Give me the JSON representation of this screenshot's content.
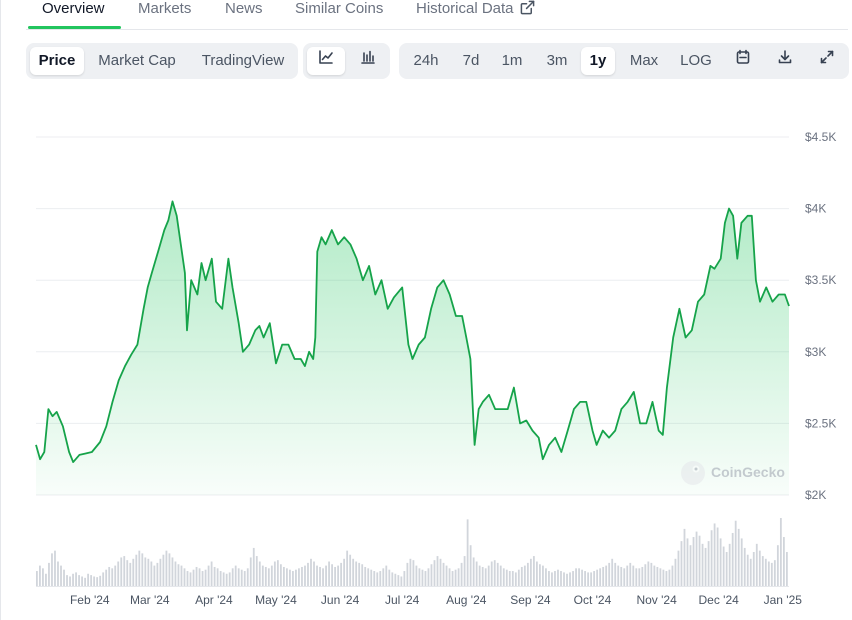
{
  "tabs": [
    {
      "label": "Overview",
      "active": true
    },
    {
      "label": "Markets"
    },
    {
      "label": "News"
    },
    {
      "label": "Similar Coins"
    },
    {
      "label": "Historical Data",
      "external_link_icon": "external-link-icon"
    }
  ],
  "chart_type_options": [
    "Price",
    "Market Cap",
    "TradingView"
  ],
  "chart_type_selected": "Price",
  "chart_style_icons": [
    "line-chart-icon",
    "candlestick-chart-icon"
  ],
  "chart_style_selected": "line-chart-icon",
  "range_options": [
    "24h",
    "7d",
    "1m",
    "3m",
    "1y",
    "Max",
    "LOG"
  ],
  "range_selected": "1y",
  "toolbar_icons": [
    "calendar-icon",
    "download-icon",
    "fullscreen-icon"
  ],
  "watermark": "CoinGecko",
  "colors": {
    "line": "#16a34a",
    "fill": "#22c55e",
    "accent": "#22c55e",
    "volume": "#d1d5db"
  },
  "chart_data": {
    "type": "area",
    "y_axis_side": "right",
    "ylim": [
      2000,
      4500
    ],
    "yticks": [
      2000,
      2500,
      3000,
      3500,
      4000,
      4500
    ],
    "ytick_labels": [
      "$2K",
      "$2.5K",
      "$3K",
      "$3.5K",
      "$4K",
      "$4.5K"
    ],
    "xlim": [
      "2024-01-06",
      "2025-01-04"
    ],
    "xtick_dates": [
      "2024-02-01",
      "2024-03-01",
      "2024-04-01",
      "2024-05-01",
      "2024-06-01",
      "2024-07-01",
      "2024-08-01",
      "2024-09-01",
      "2024-10-01",
      "2024-11-01",
      "2024-12-01",
      "2025-01-01"
    ],
    "xtick_labels": [
      "Feb '24",
      "Mar '24",
      "Apr '24",
      "May '24",
      "Jun '24",
      "Jul '24",
      "Aug '24",
      "Sep '24",
      "Oct '24",
      "Nov '24",
      "Dec '24",
      "Jan '25"
    ],
    "grid": true,
    "price": [
      [
        "2024-01-06",
        2350
      ],
      [
        "2024-01-08",
        2250
      ],
      [
        "2024-01-10",
        2300
      ],
      [
        "2024-01-12",
        2600
      ],
      [
        "2024-01-14",
        2550
      ],
      [
        "2024-01-16",
        2580
      ],
      [
        "2024-01-19",
        2480
      ],
      [
        "2024-01-22",
        2300
      ],
      [
        "2024-01-24",
        2230
      ],
      [
        "2024-01-27",
        2280
      ],
      [
        "2024-01-30",
        2290
      ],
      [
        "2024-02-02",
        2300
      ],
      [
        "2024-02-06",
        2370
      ],
      [
        "2024-02-09",
        2480
      ],
      [
        "2024-02-12",
        2650
      ],
      [
        "2024-02-15",
        2800
      ],
      [
        "2024-02-18",
        2900
      ],
      [
        "2024-02-21",
        2980
      ],
      [
        "2024-02-24",
        3050
      ],
      [
        "2024-02-27",
        3300
      ],
      [
        "2024-02-29",
        3450
      ],
      [
        "2024-03-02",
        3550
      ],
      [
        "2024-03-05",
        3700
      ],
      [
        "2024-03-08",
        3850
      ],
      [
        "2024-03-10",
        3920
      ],
      [
        "2024-03-12",
        4050
      ],
      [
        "2024-03-14",
        3950
      ],
      [
        "2024-03-16",
        3750
      ],
      [
        "2024-03-18",
        3550
      ],
      [
        "2024-03-19",
        3150
      ],
      [
        "2024-03-21",
        3500
      ],
      [
        "2024-03-24",
        3400
      ],
      [
        "2024-03-26",
        3620
      ],
      [
        "2024-03-28",
        3500
      ],
      [
        "2024-03-31",
        3650
      ],
      [
        "2024-04-02",
        3350
      ],
      [
        "2024-04-05",
        3300
      ],
      [
        "2024-04-08",
        3650
      ],
      [
        "2024-04-10",
        3450
      ],
      [
        "2024-04-13",
        3200
      ],
      [
        "2024-04-15",
        3000
      ],
      [
        "2024-04-18",
        3050
      ],
      [
        "2024-04-21",
        3150
      ],
      [
        "2024-04-23",
        3180
      ],
      [
        "2024-04-25",
        3100
      ],
      [
        "2024-04-28",
        3200
      ],
      [
        "2024-05-01",
        2920
      ],
      [
        "2024-05-04",
        3050
      ],
      [
        "2024-05-07",
        3050
      ],
      [
        "2024-05-10",
        2950
      ],
      [
        "2024-05-13",
        2950
      ],
      [
        "2024-05-15",
        2900
      ],
      [
        "2024-05-17",
        3000
      ],
      [
        "2024-05-19",
        2950
      ],
      [
        "2024-05-20",
        3100
      ],
      [
        "2024-05-21",
        3700
      ],
      [
        "2024-05-23",
        3800
      ],
      [
        "2024-05-25",
        3750
      ],
      [
        "2024-05-28",
        3850
      ],
      [
        "2024-05-31",
        3750
      ],
      [
        "2024-06-03",
        3800
      ],
      [
        "2024-06-06",
        3750
      ],
      [
        "2024-06-09",
        3650
      ],
      [
        "2024-06-12",
        3500
      ],
      [
        "2024-06-15",
        3600
      ],
      [
        "2024-06-18",
        3400
      ],
      [
        "2024-06-21",
        3500
      ],
      [
        "2024-06-24",
        3300
      ],
      [
        "2024-06-27",
        3380
      ],
      [
        "2024-07-01",
        3450
      ],
      [
        "2024-07-04",
        3050
      ],
      [
        "2024-07-06",
        2950
      ],
      [
        "2024-07-09",
        3050
      ],
      [
        "2024-07-12",
        3100
      ],
      [
        "2024-07-15",
        3300
      ],
      [
        "2024-07-18",
        3450
      ],
      [
        "2024-07-21",
        3500
      ],
      [
        "2024-07-24",
        3400
      ],
      [
        "2024-07-27",
        3250
      ],
      [
        "2024-07-30",
        3250
      ],
      [
        "2024-08-01",
        3100
      ],
      [
        "2024-08-03",
        2950
      ],
      [
        "2024-08-05",
        2350
      ],
      [
        "2024-08-07",
        2600
      ],
      [
        "2024-08-09",
        2650
      ],
      [
        "2024-08-12",
        2700
      ],
      [
        "2024-08-15",
        2600
      ],
      [
        "2024-08-18",
        2600
      ],
      [
        "2024-08-21",
        2600
      ],
      [
        "2024-08-24",
        2750
      ],
      [
        "2024-08-27",
        2500
      ],
      [
        "2024-08-30",
        2520
      ],
      [
        "2024-09-02",
        2450
      ],
      [
        "2024-09-05",
        2400
      ],
      [
        "2024-09-07",
        2250
      ],
      [
        "2024-09-10",
        2350
      ],
      [
        "2024-09-13",
        2400
      ],
      [
        "2024-09-16",
        2300
      ],
      [
        "2024-09-19",
        2450
      ],
      [
        "2024-09-22",
        2600
      ],
      [
        "2024-09-25",
        2650
      ],
      [
        "2024-09-28",
        2650
      ],
      [
        "2024-10-01",
        2450
      ],
      [
        "2024-10-03",
        2350
      ],
      [
        "2024-10-06",
        2450
      ],
      [
        "2024-10-09",
        2400
      ],
      [
        "2024-10-12",
        2450
      ],
      [
        "2024-10-15",
        2600
      ],
      [
        "2024-10-18",
        2650
      ],
      [
        "2024-10-21",
        2720
      ],
      [
        "2024-10-24",
        2500
      ],
      [
        "2024-10-27",
        2500
      ],
      [
        "2024-10-30",
        2650
      ],
      [
        "2024-11-02",
        2450
      ],
      [
        "2024-11-04",
        2420
      ],
      [
        "2024-11-06",
        2750
      ],
      [
        "2024-11-09",
        3100
      ],
      [
        "2024-11-12",
        3300
      ],
      [
        "2024-11-15",
        3100
      ],
      [
        "2024-11-18",
        3150
      ],
      [
        "2024-11-21",
        3350
      ],
      [
        "2024-11-24",
        3400
      ],
      [
        "2024-11-27",
        3600
      ],
      [
        "2024-11-29",
        3580
      ],
      [
        "2024-12-02",
        3650
      ],
      [
        "2024-12-04",
        3900
      ],
      [
        "2024-12-06",
        4000
      ],
      [
        "2024-12-08",
        3950
      ],
      [
        "2024-12-10",
        3650
      ],
      [
        "2024-12-12",
        3900
      ],
      [
        "2024-12-15",
        3950
      ],
      [
        "2024-12-17",
        3950
      ],
      [
        "2024-12-19",
        3500
      ],
      [
        "2024-12-21",
        3350
      ],
      [
        "2024-12-24",
        3450
      ],
      [
        "2024-12-27",
        3350
      ],
      [
        "2024-12-30",
        3400
      ],
      [
        "2025-01-02",
        3400
      ],
      [
        "2025-01-04",
        3320
      ]
    ],
    "volume_relative": [
      0.22,
      0.3,
      0.26,
      0.18,
      0.34,
      0.48,
      0.52,
      0.36,
      0.3,
      0.24,
      0.16,
      0.14,
      0.18,
      0.2,
      0.16,
      0.14,
      0.12,
      0.18,
      0.16,
      0.14,
      0.13,
      0.15,
      0.2,
      0.24,
      0.28,
      0.26,
      0.3,
      0.36,
      0.42,
      0.44,
      0.38,
      0.34,
      0.4,
      0.46,
      0.52,
      0.48,
      0.42,
      0.4,
      0.36,
      0.3,
      0.34,
      0.4,
      0.46,
      0.52,
      0.48,
      0.42,
      0.36,
      0.32,
      0.3,
      0.26,
      0.22,
      0.2,
      0.24,
      0.28,
      0.26,
      0.22,
      0.24,
      0.3,
      0.36,
      0.28,
      0.26,
      0.22,
      0.2,
      0.18,
      0.2,
      0.26,
      0.3,
      0.26,
      0.24,
      0.22,
      0.26,
      0.42,
      0.56,
      0.44,
      0.36,
      0.3,
      0.28,
      0.26,
      0.3,
      0.36,
      0.38,
      0.32,
      0.28,
      0.26,
      0.24,
      0.22,
      0.24,
      0.26,
      0.28,
      0.3,
      0.34,
      0.4,
      0.36,
      0.3,
      0.28,
      0.26,
      0.3,
      0.36,
      0.32,
      0.28,
      0.3,
      0.34,
      0.4,
      0.52,
      0.46,
      0.4,
      0.36,
      0.34,
      0.32,
      0.28,
      0.26,
      0.24,
      0.22,
      0.2,
      0.22,
      0.26,
      0.3,
      0.24,
      0.2,
      0.18,
      0.16,
      0.14,
      0.22,
      0.34,
      0.4,
      0.38,
      0.3,
      0.26,
      0.24,
      0.22,
      0.26,
      0.32,
      0.38,
      0.44,
      0.4,
      0.34,
      0.3,
      0.26,
      0.22,
      0.24,
      0.26,
      0.34,
      0.44,
      0.98,
      0.6,
      0.42,
      0.36,
      0.3,
      0.28,
      0.26,
      0.3,
      0.36,
      0.38,
      0.34,
      0.3,
      0.26,
      0.24,
      0.22,
      0.22,
      0.2,
      0.24,
      0.28,
      0.3,
      0.34,
      0.4,
      0.44,
      0.36,
      0.32,
      0.3,
      0.26,
      0.22,
      0.2,
      0.22,
      0.24,
      0.22,
      0.2,
      0.18,
      0.2,
      0.22,
      0.26,
      0.26,
      0.24,
      0.22,
      0.2,
      0.2,
      0.22,
      0.24,
      0.26,
      0.28,
      0.3,
      0.34,
      0.4,
      0.34,
      0.3,
      0.28,
      0.26,
      0.3,
      0.34,
      0.3,
      0.26,
      0.26,
      0.28,
      0.32,
      0.36,
      0.34,
      0.3,
      0.28,
      0.26,
      0.24,
      0.22,
      0.24,
      0.3,
      0.4,
      0.52,
      0.66,
      0.84,
      0.7,
      0.6,
      0.72,
      0.8,
      0.74,
      0.62,
      0.56,
      0.66,
      0.82,
      0.92,
      0.86,
      0.7,
      0.58,
      0.5,
      0.62,
      0.78,
      0.96,
      0.84,
      0.7,
      0.56,
      0.46,
      0.4,
      0.5,
      0.62,
      0.52,
      0.44,
      0.4,
      0.36,
      0.34,
      0.38,
      0.6,
      1.0,
      0.72,
      0.5
    ]
  }
}
